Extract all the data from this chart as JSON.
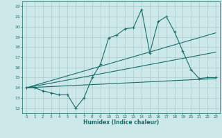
{
  "xlabel": "Humidex (Indice chaleur)",
  "bg_color": "#cce8e8",
  "line_color": "#1a6b6b",
  "grid_color": "#aacccc",
  "xlim": [
    -0.5,
    23.5
  ],
  "ylim": [
    11.5,
    22.5
  ],
  "yticks": [
    12,
    13,
    14,
    15,
    16,
    17,
    18,
    19,
    20,
    21,
    22
  ],
  "xticks": [
    0,
    1,
    2,
    3,
    4,
    5,
    6,
    7,
    8,
    9,
    10,
    11,
    12,
    13,
    14,
    15,
    16,
    17,
    18,
    19,
    20,
    21,
    22,
    23
  ],
  "main_x": [
    0,
    1,
    2,
    3,
    4,
    5,
    6,
    7,
    8,
    9,
    10,
    11,
    12,
    13,
    14,
    15,
    16,
    17,
    18,
    19,
    20,
    21,
    22,
    23
  ],
  "main_y": [
    14.0,
    14.0,
    13.7,
    13.5,
    13.3,
    13.3,
    12.0,
    13.0,
    15.0,
    16.3,
    18.9,
    19.2,
    19.8,
    19.9,
    21.7,
    17.4,
    20.5,
    21.0,
    19.5,
    17.6,
    15.8,
    14.9,
    15.0,
    15.0
  ],
  "trend1_x": [
    0,
    23
  ],
  "trend1_y": [
    14.0,
    17.5
  ],
  "trend2_x": [
    0,
    23
  ],
  "trend2_y": [
    14.0,
    14.9
  ],
  "trend3_x": [
    0,
    23
  ],
  "trend3_y": [
    14.0,
    19.4
  ]
}
